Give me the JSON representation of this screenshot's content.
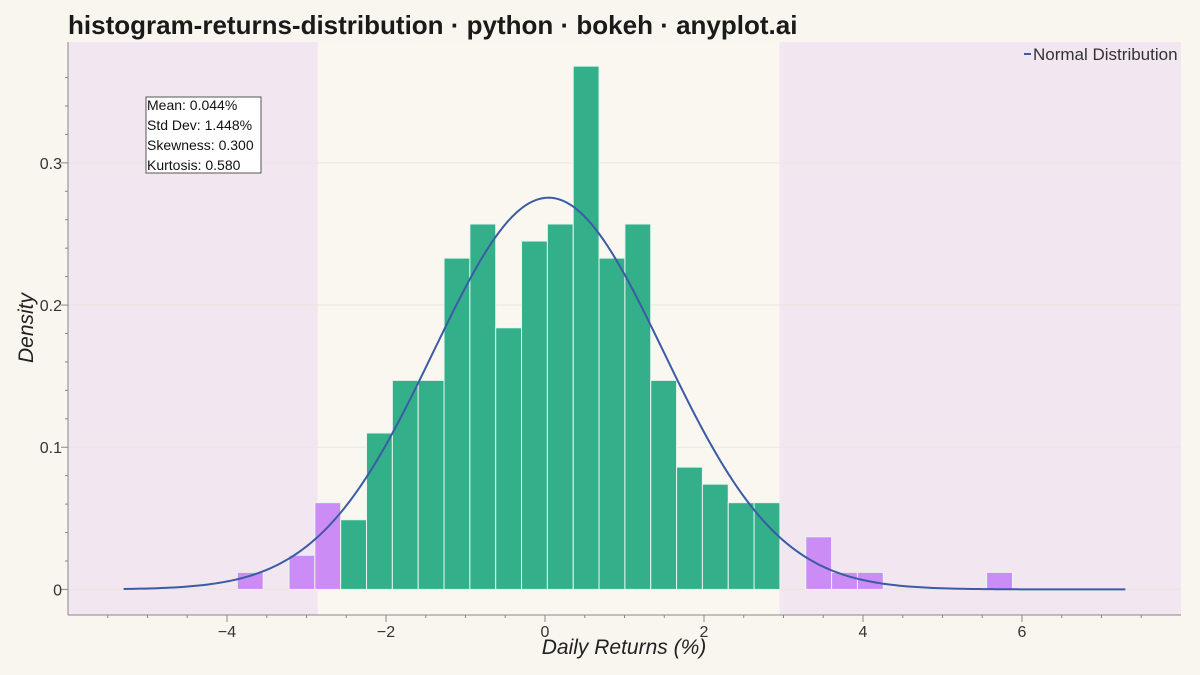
{
  "chart_data": {
    "type": "bar",
    "title": "histogram-returns-distribution · python · bokeh · anyplot.ai",
    "xlabel": "Daily Returns (%)",
    "ylabel": "Density",
    "xlim": [
      -6.0,
      8.0
    ],
    "ylim": [
      -0.018,
      0.385
    ],
    "xticks": [
      -4,
      -2,
      0,
      2,
      4,
      6
    ],
    "yticks": [
      0,
      0.1,
      0.2,
      0.3
    ],
    "xtick_labels": [
      "−4",
      "−2",
      "0",
      "2",
      "4",
      "6"
    ],
    "ytick_labels": [
      "0",
      "0.1",
      "0.2",
      "0.3"
    ],
    "grid": true,
    "bin_width": 0.325,
    "tail_bands": [
      {
        "x0": -6.0,
        "x1": -2.86,
        "color": "#f2e6f0"
      },
      {
        "x0": 2.95,
        "x1": 8.0,
        "color": "#f2e6f0"
      }
    ],
    "bins": [
      {
        "x0": -3.87,
        "value": 0.012,
        "tail": true
      },
      {
        "x0": -3.22,
        "value": 0.024,
        "tail": true
      },
      {
        "x0": -2.895,
        "value": 0.061,
        "tail": true
      },
      {
        "x0": -2.57,
        "value": 0.049,
        "tail": false
      },
      {
        "x0": -2.245,
        "value": 0.11,
        "tail": false
      },
      {
        "x0": -1.92,
        "value": 0.147,
        "tail": false
      },
      {
        "x0": -1.595,
        "value": 0.147,
        "tail": false
      },
      {
        "x0": -1.27,
        "value": 0.233,
        "tail": false
      },
      {
        "x0": -0.945,
        "value": 0.257,
        "tail": false
      },
      {
        "x0": -0.62,
        "value": 0.184,
        "tail": false
      },
      {
        "x0": -0.295,
        "value": 0.245,
        "tail": false
      },
      {
        "x0": 0.03,
        "value": 0.257,
        "tail": false
      },
      {
        "x0": 0.355,
        "value": 0.368,
        "tail": false
      },
      {
        "x0": 0.68,
        "value": 0.233,
        "tail": false
      },
      {
        "x0": 1.005,
        "value": 0.257,
        "tail": false
      },
      {
        "x0": 1.33,
        "value": 0.147,
        "tail": false
      },
      {
        "x0": 1.655,
        "value": 0.086,
        "tail": false
      },
      {
        "x0": 1.98,
        "value": 0.074,
        "tail": false
      },
      {
        "x0": 2.305,
        "value": 0.061,
        "tail": false
      },
      {
        "x0": 2.63,
        "value": 0.061,
        "tail": false
      },
      {
        "x0": 3.28,
        "value": 0.037,
        "tail": true
      },
      {
        "x0": 3.605,
        "value": 0.012,
        "tail": true
      },
      {
        "x0": 3.93,
        "value": 0.012,
        "tail": true
      },
      {
        "x0": 5.555,
        "value": 0.012,
        "tail": true
      }
    ],
    "normal_curve": {
      "mean": 0.044,
      "std": 1.448,
      "x_range": [
        -5.3,
        7.3
      ],
      "color": "#3b5ba5"
    },
    "colors": {
      "bar": "#33b08a",
      "tail_bar": "#cc8cf5",
      "bar_edge": "#e8f5ef",
      "grid": "#ebe5dd",
      "axis": "#888888"
    },
    "legend": {
      "placement": "top-right",
      "entries": [
        {
          "label": "Normal Distribution",
          "color": "#3b5ba5"
        }
      ]
    },
    "stats_box": {
      "placement": "top-left",
      "lines": [
        "Mean: 0.044%",
        "Std Dev: 1.448%",
        "Skewness: 0.300",
        "Kurtosis: 0.580"
      ]
    }
  }
}
